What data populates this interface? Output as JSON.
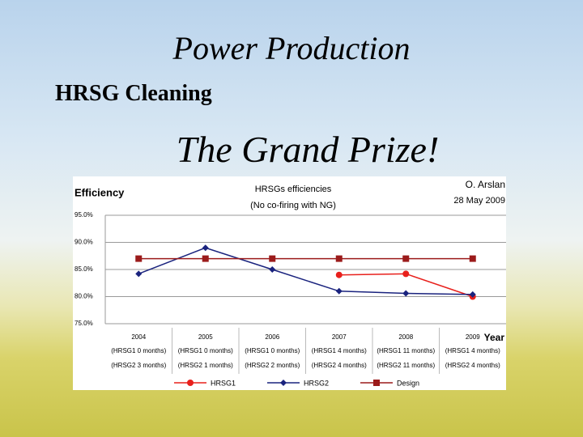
{
  "slide": {
    "title": "Power Production",
    "subtitle": "HRSG Cleaning",
    "heading": "The Grand Prize!"
  },
  "chart_data": {
    "type": "line",
    "title": "HRSGs efficiencies",
    "subtitle": "(No co-firing with NG)",
    "annotations": [
      "O. Arslan",
      "28 May 2009"
    ],
    "y_label": "Efficiency",
    "x_label": "Year",
    "categories": [
      "2004",
      "2005",
      "2006",
      "2007",
      "2008",
      "2009"
    ],
    "category_notes": [
      [
        "(HRSG1 0 months)",
        "(HRSG2 3 months)"
      ],
      [
        "(HRSG1 0 months)",
        "(HRSG2 1 months)"
      ],
      [
        "(HRSG1 0 months)",
        "(HRSG2 2 months)"
      ],
      [
        "(HRSG1 4 months)",
        "(HRSG2 4 months)"
      ],
      [
        "(HRSG1 11 months)",
        "(HRSG2 11 months)"
      ],
      [
        "(HRSG1 4 months)",
        "(HRSG2 4 months)"
      ]
    ],
    "series": [
      {
        "name": "HRSG1",
        "color": "#e8201c",
        "marker": "circle",
        "values": [
          null,
          null,
          null,
          84.0,
          84.2,
          80.0
        ]
      },
      {
        "name": "HRSG2",
        "color": "#1a237e",
        "marker": "diamond",
        "values": [
          84.2,
          89.0,
          85.0,
          81.0,
          80.6,
          80.4
        ]
      },
      {
        "name": "Design",
        "color": "#9b1b1b",
        "marker": "square",
        "values": [
          87.0,
          87.0,
          87.0,
          87.0,
          87.0,
          87.0
        ]
      }
    ],
    "ylim": [
      75,
      95
    ],
    "yticks": [
      {
        "value": 75,
        "label": "75.0%"
      },
      {
        "value": 80,
        "label": "80.0%"
      },
      {
        "value": 85,
        "label": "85.0%"
      },
      {
        "value": 90,
        "label": "90.0%"
      },
      {
        "value": 95,
        "label": "95.0%"
      }
    ],
    "grid": true,
    "legend": "bottom"
  }
}
